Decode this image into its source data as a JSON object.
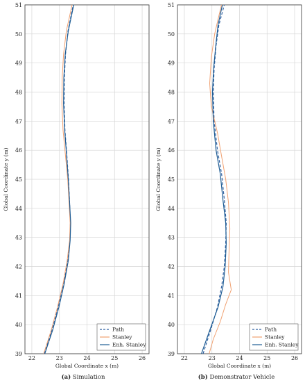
{
  "chart_data": [
    {
      "type": "line",
      "caption_tag": "(a)",
      "caption_text": "Simulation",
      "xlabel": "Global Coordinate x (m)",
      "ylabel": "Global Coordinate y (m)",
      "xlim": [
        21.75,
        26.25
      ],
      "ylim": [
        39,
        51
      ],
      "xticks": [
        "22",
        "23",
        "24",
        "25",
        "26"
      ],
      "yticks": [
        "39",
        "40",
        "41",
        "42",
        "43",
        "44",
        "45",
        "46",
        "47",
        "48",
        "49",
        "50",
        "51"
      ],
      "grid": true,
      "legend_position": "bottom-right",
      "series": [
        {
          "name": "Path",
          "color": "#2f5fa0",
          "dash": "dashed",
          "x": [
            22.45,
            22.72,
            22.95,
            23.15,
            23.3,
            23.38,
            23.4,
            23.37,
            23.33,
            23.27,
            23.2,
            23.17,
            23.18,
            23.22,
            23.31,
            23.5
          ],
          "y": [
            39.0,
            39.8,
            40.6,
            41.4,
            42.2,
            42.9,
            43.5,
            44.2,
            45.0,
            45.8,
            46.7,
            47.6,
            48.5,
            49.3,
            50.1,
            51.0
          ]
        },
        {
          "name": "Stanley",
          "color": "#f0a070",
          "dash": "solid",
          "x": [
            22.43,
            22.7,
            22.93,
            23.13,
            23.28,
            23.37,
            23.39,
            23.35,
            23.3,
            23.22,
            23.13,
            23.09,
            23.1,
            23.15,
            23.25,
            23.46
          ],
          "y": [
            39.0,
            39.8,
            40.6,
            41.4,
            42.2,
            42.9,
            43.5,
            44.2,
            45.0,
            45.8,
            46.7,
            47.6,
            48.5,
            49.3,
            50.1,
            51.0
          ]
        },
        {
          "name": "Enh. Stanley",
          "color": "#1f5d94",
          "dash": "solid",
          "x": [
            22.47,
            22.75,
            22.98,
            23.17,
            23.32,
            23.39,
            23.41,
            23.37,
            23.32,
            23.26,
            23.19,
            23.15,
            23.16,
            23.21,
            23.32,
            23.52
          ],
          "y": [
            39.0,
            39.8,
            40.6,
            41.4,
            42.2,
            42.9,
            43.5,
            44.2,
            45.0,
            45.8,
            46.7,
            47.6,
            48.5,
            49.3,
            50.1,
            51.0
          ]
        }
      ]
    },
    {
      "type": "line",
      "caption_tag": "(b)",
      "caption_text": "Demonstrator Vehicle",
      "xlabel": "Global Coordinate x (m)",
      "ylabel": "Global Coordinate y (m)",
      "xlim": [
        21.75,
        26.25
      ],
      "ylim": [
        39,
        51
      ],
      "xticks": [
        "22",
        "23",
        "24",
        "25",
        "26"
      ],
      "yticks": [
        "39",
        "40",
        "41",
        "42",
        "43",
        "44",
        "45",
        "46",
        "47",
        "48",
        "49",
        "50",
        "51"
      ],
      "grid": true,
      "legend_position": "bottom-right",
      "series": [
        {
          "name": "Path",
          "color": "#2f5fa0",
          "dash": "dashed",
          "x": [
            22.68,
            22.95,
            23.2,
            23.35,
            23.45,
            23.5,
            23.52,
            23.45,
            23.35,
            23.2,
            23.08,
            23.05,
            23.08,
            23.15,
            23.25,
            23.45
          ],
          "y": [
            39.0,
            39.8,
            40.6,
            41.3,
            42.0,
            42.8,
            43.5,
            44.3,
            45.2,
            46.0,
            47.0,
            48.0,
            48.8,
            49.6,
            50.3,
            51.0
          ]
        },
        {
          "name": "Stanley",
          "color": "#f0a070",
          "dash": "solid",
          "x": [
            22.9,
            23.05,
            23.3,
            23.5,
            23.7,
            23.6,
            23.62,
            23.65,
            23.6,
            23.5,
            23.35,
            23.2,
            22.98,
            22.92,
            22.98,
            23.1,
            23.22,
            23.35
          ],
          "y": [
            39.0,
            39.5,
            40.1,
            40.7,
            41.2,
            41.8,
            42.5,
            43.3,
            44.2,
            45.0,
            45.8,
            46.6,
            47.5,
            48.3,
            49.2,
            50.0,
            50.5,
            51.0
          ]
        },
        {
          "name": "Enh. Stanley",
          "color": "#1f5d94",
          "dash": "solid",
          "x": [
            22.62,
            22.92,
            23.22,
            23.4,
            23.48,
            23.52,
            23.5,
            23.4,
            23.3,
            23.15,
            23.05,
            23.02,
            23.06,
            23.14,
            23.22,
            23.38
          ],
          "y": [
            39.0,
            39.8,
            40.6,
            41.3,
            42.0,
            42.8,
            43.5,
            44.3,
            45.2,
            46.0,
            47.0,
            48.0,
            48.8,
            49.6,
            50.3,
            51.0
          ]
        }
      ]
    }
  ]
}
